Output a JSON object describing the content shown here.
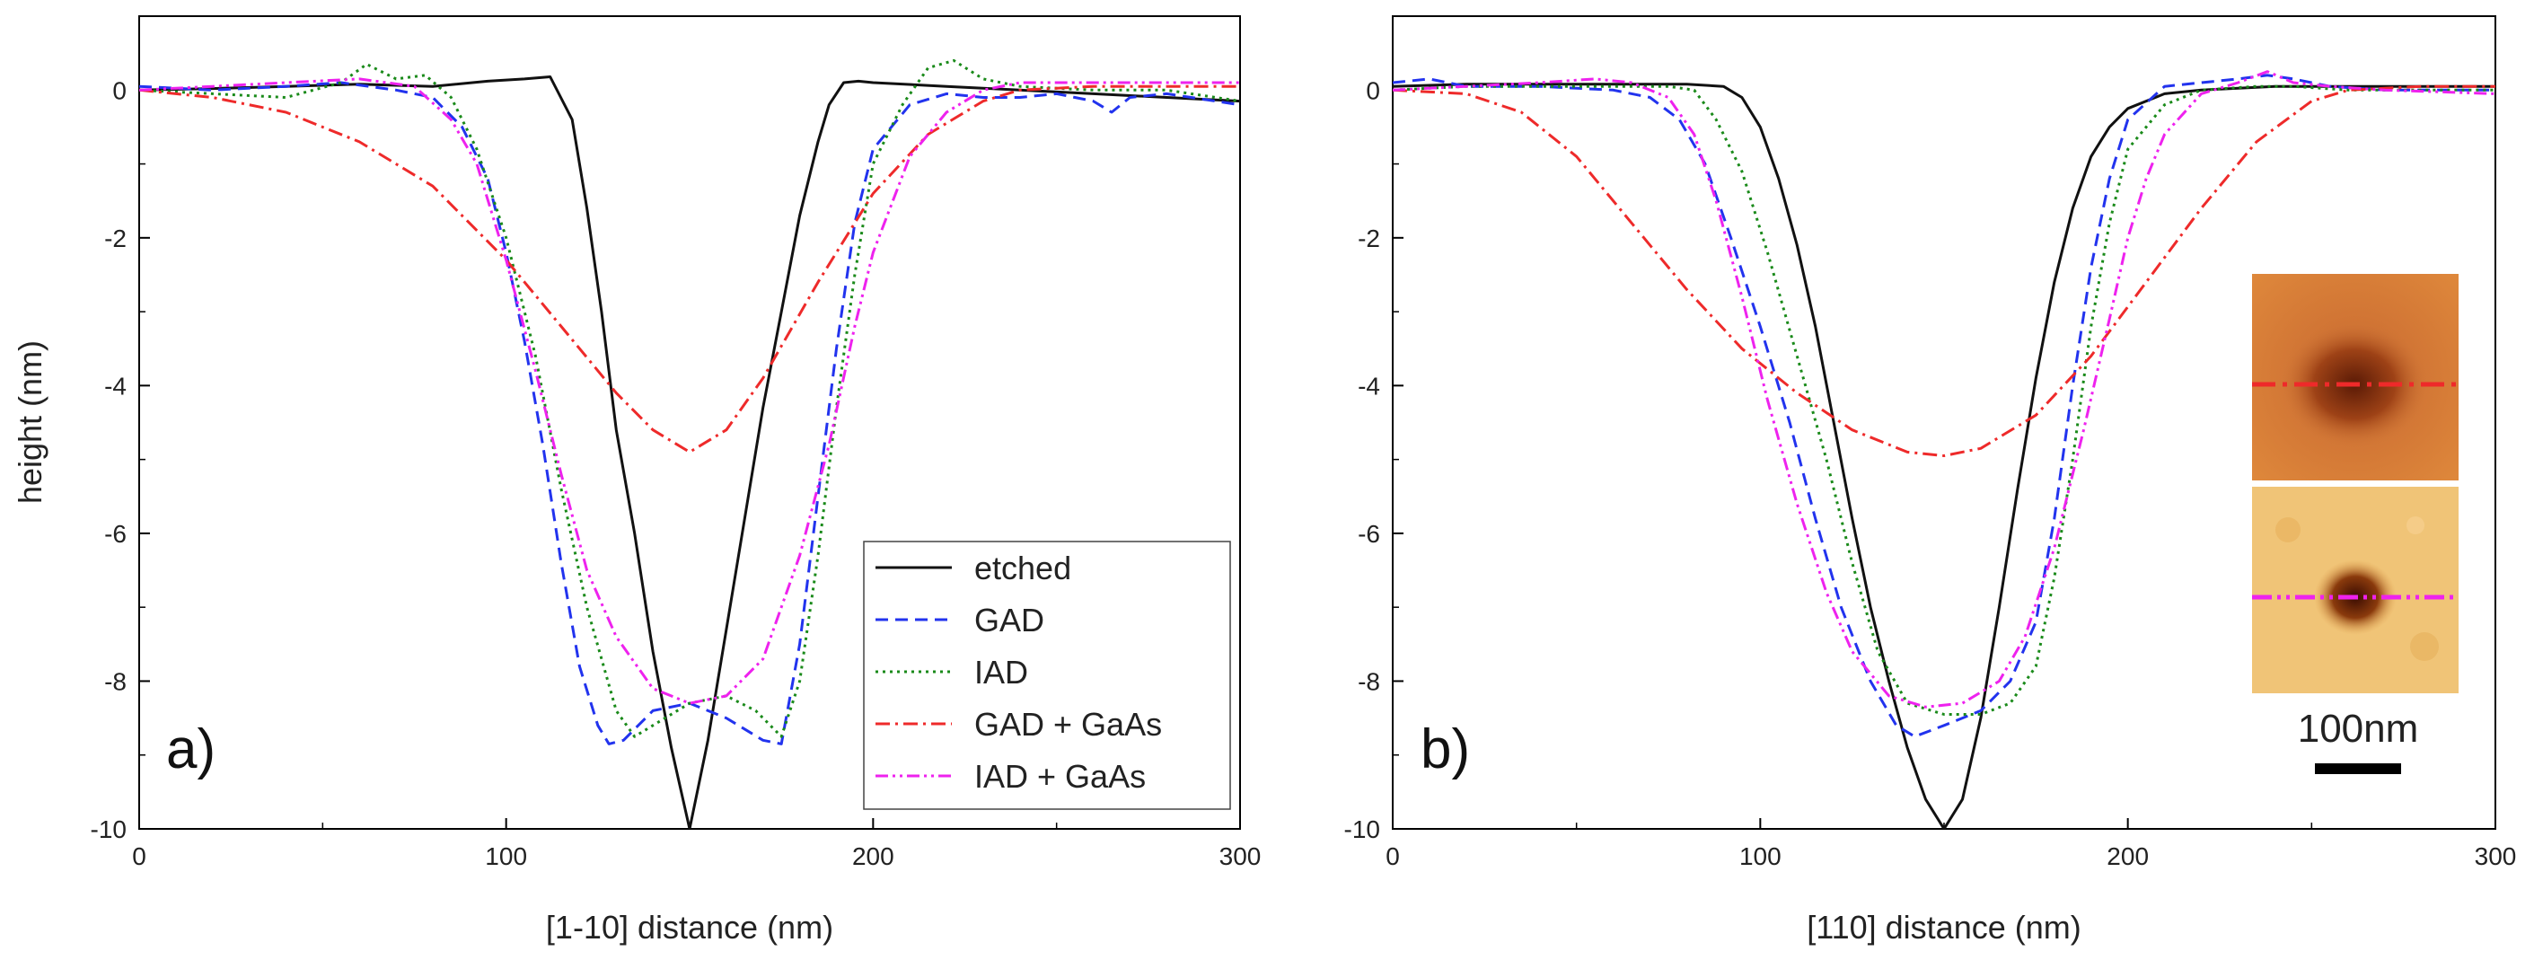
{
  "colors": {
    "etched": "#111111",
    "GAD": "#2233ee",
    "IAD": "#1a8a1a",
    "GAD_GaAs": "#ee2a2a",
    "IAD_GaAs": "#ee22ee"
  },
  "inset": {
    "scale_bar_label": "100nm",
    "top_image": "GAD + GaAs hole (AFM)",
    "bottom_image": "IAD + GaAs hole (AFM)"
  },
  "chart_data": [
    {
      "type": "line",
      "panel_label": "a)",
      "xlabel": "[1-10] distance (nm)",
      "ylabel": "height (nm)",
      "xlim": [
        0,
        300
      ],
      "ylim": [
        -10,
        1
      ],
      "xticks": [
        0,
        100,
        200,
        300
      ],
      "yticks": [
        0,
        -2,
        -4,
        -6,
        -8,
        -10
      ],
      "legend": [
        "etched",
        "GAD",
        "IAD",
        "GAD + GaAs",
        "IAD + GaAs"
      ],
      "legend_position": "bottom-right",
      "series": [
        {
          "name": "etched",
          "style": "solid",
          "x": [
            0,
            20,
            40,
            60,
            80,
            95,
            105,
            112,
            118,
            122,
            126,
            130,
            135,
            140,
            145,
            150,
            155,
            160,
            165,
            170,
            175,
            180,
            185,
            188,
            192,
            196,
            200,
            220,
            240,
            260,
            280,
            300
          ],
          "y": [
            0,
            0.02,
            0.05,
            0.08,
            0.05,
            0.12,
            0.15,
            0.18,
            -0.4,
            -1.6,
            -3.0,
            -4.6,
            -6.0,
            -7.6,
            -8.9,
            -10,
            -8.8,
            -7.3,
            -5.8,
            -4.3,
            -3.0,
            -1.7,
            -0.7,
            -0.2,
            0.1,
            0.12,
            0.1,
            0.05,
            0.0,
            -0.05,
            -0.1,
            -0.15
          ]
        },
        {
          "name": "GAD",
          "style": "dashed",
          "x": [
            0,
            20,
            40,
            55,
            70,
            80,
            88,
            95,
            100,
            105,
            110,
            115,
            120,
            125,
            128,
            132,
            140,
            150,
            160,
            170,
            175,
            180,
            185,
            190,
            195,
            200,
            210,
            220,
            230,
            240,
            250,
            260,
            265,
            270,
            280,
            300
          ],
          "y": [
            0.05,
            0,
            0.05,
            0.1,
            0,
            -0.1,
            -0.5,
            -1.2,
            -2.2,
            -3.4,
            -4.8,
            -6.4,
            -7.8,
            -8.6,
            -8.85,
            -8.8,
            -8.4,
            -8.3,
            -8.5,
            -8.8,
            -8.85,
            -7.5,
            -5.5,
            -3.5,
            -1.8,
            -0.8,
            -0.2,
            -0.05,
            -0.1,
            -0.1,
            -0.05,
            -0.15,
            -0.3,
            -0.1,
            -0.05,
            -0.2
          ]
        },
        {
          "name": "IAD",
          "style": "dotted",
          "x": [
            0,
            20,
            40,
            55,
            62,
            70,
            78,
            85,
            92,
            100,
            108,
            115,
            122,
            130,
            135,
            140,
            150,
            160,
            168,
            175,
            180,
            185,
            190,
            195,
            200,
            208,
            215,
            222,
            230,
            240,
            260,
            280,
            300
          ],
          "y": [
            0,
            -0.05,
            -0.1,
            0.1,
            0.35,
            0.15,
            0.2,
            -0.1,
            -0.8,
            -2.0,
            -3.6,
            -5.4,
            -7.0,
            -8.4,
            -8.75,
            -8.6,
            -8.3,
            -8.2,
            -8.4,
            -8.75,
            -8.0,
            -6.3,
            -4.3,
            -2.5,
            -1.0,
            -0.2,
            0.3,
            0.4,
            0.15,
            0.05,
            0.0,
            0.0,
            -0.15
          ]
        },
        {
          "name": "GAD + GaAs",
          "style": "dashdot",
          "x": [
            0,
            20,
            40,
            60,
            80,
            100,
            115,
            130,
            140,
            150,
            160,
            170,
            185,
            200,
            215,
            230,
            240,
            260,
            300
          ],
          "y": [
            0,
            -0.1,
            -0.3,
            -0.7,
            -1.3,
            -2.3,
            -3.2,
            -4.1,
            -4.6,
            -4.9,
            -4.6,
            -3.9,
            -2.6,
            -1.4,
            -0.6,
            -0.15,
            0.0,
            0.05,
            0.05
          ]
        },
        {
          "name": "IAD + GaAs",
          "style": "dashdotdot",
          "x": [
            0,
            20,
            40,
            60,
            75,
            85,
            92,
            100,
            108,
            115,
            122,
            130,
            140,
            150,
            160,
            170,
            180,
            188,
            195,
            200,
            210,
            220,
            230,
            240,
            260,
            300
          ],
          "y": [
            0,
            0.05,
            0.1,
            0.15,
            0.05,
            -0.4,
            -1.0,
            -2.3,
            -3.8,
            -5.2,
            -6.5,
            -7.4,
            -8.1,
            -8.3,
            -8.2,
            -7.7,
            -6.3,
            -4.8,
            -3.2,
            -2.2,
            -0.9,
            -0.3,
            0.0,
            0.1,
            0.1,
            0.1
          ]
        }
      ]
    },
    {
      "type": "line",
      "panel_label": "b)",
      "xlabel": "[110] distance (nm)",
      "ylabel": "height (nm)",
      "xlim": [
        0,
        300
      ],
      "ylim": [
        -10,
        1
      ],
      "xticks": [
        0,
        100,
        200,
        300
      ],
      "yticks": [
        0,
        -2,
        -4,
        -6,
        -8,
        -10
      ],
      "series": [
        {
          "name": "etched",
          "style": "solid",
          "x": [
            0,
            20,
            40,
            60,
            80,
            90,
            95,
            100,
            105,
            110,
            115,
            120,
            125,
            130,
            135,
            140,
            145,
            150,
            155,
            160,
            165,
            170,
            175,
            180,
            185,
            190,
            195,
            200,
            210,
            220,
            240,
            260,
            280,
            300
          ],
          "y": [
            0.05,
            0.08,
            0.08,
            0.08,
            0.08,
            0.05,
            -0.1,
            -0.5,
            -1.2,
            -2.1,
            -3.2,
            -4.5,
            -5.8,
            -7.0,
            -8.0,
            -8.9,
            -9.6,
            -10,
            -9.6,
            -8.5,
            -7.0,
            -5.4,
            -3.9,
            -2.6,
            -1.6,
            -0.9,
            -0.5,
            -0.25,
            -0.05,
            0.0,
            0.05,
            0.05,
            0.05,
            0.05
          ]
        },
        {
          "name": "GAD",
          "style": "dashed",
          "x": [
            0,
            10,
            20,
            40,
            60,
            70,
            78,
            85,
            92,
            100,
            108,
            115,
            122,
            130,
            137,
            142,
            150,
            160,
            168,
            175,
            180,
            185,
            190,
            195,
            200,
            210,
            220,
            230,
            238,
            245,
            255,
            270,
            300
          ],
          "y": [
            0.1,
            0.15,
            0.05,
            0.05,
            0.0,
            -0.1,
            -0.4,
            -1.0,
            -2.0,
            -3.2,
            -4.5,
            -5.8,
            -7.0,
            -8.0,
            -8.6,
            -8.75,
            -8.6,
            -8.4,
            -8.0,
            -7.2,
            -5.8,
            -4.0,
            -2.4,
            -1.2,
            -0.4,
            0.05,
            0.1,
            0.15,
            0.2,
            0.15,
            0.05,
            0.0,
            0.0
          ]
        },
        {
          "name": "IAD",
          "style": "dotted",
          "x": [
            0,
            20,
            40,
            60,
            75,
            82,
            88,
            95,
            102,
            110,
            118,
            125,
            132,
            140,
            150,
            160,
            168,
            175,
            180,
            185,
            190,
            195,
            200,
            210,
            220,
            235,
            245,
            260,
            300
          ],
          "y": [
            0,
            0.05,
            0.05,
            0.05,
            0.05,
            0.0,
            -0.4,
            -1.1,
            -2.2,
            -3.6,
            -5.0,
            -6.4,
            -7.6,
            -8.3,
            -8.45,
            -8.45,
            -8.3,
            -7.8,
            -6.6,
            -5.0,
            -3.2,
            -1.8,
            -0.8,
            -0.2,
            0.0,
            0.05,
            0.05,
            0.0,
            0.0
          ]
        },
        {
          "name": "GAD + GaAs",
          "style": "dashdot",
          "x": [
            0,
            20,
            35,
            50,
            65,
            80,
            95,
            110,
            125,
            140,
            150,
            160,
            175,
            190,
            205,
            220,
            235,
            250,
            260,
            280,
            300
          ],
          "y": [
            0,
            -0.05,
            -0.3,
            -0.9,
            -1.8,
            -2.7,
            -3.5,
            -4.1,
            -4.6,
            -4.9,
            -4.95,
            -4.85,
            -4.4,
            -3.6,
            -2.6,
            -1.6,
            -0.7,
            -0.15,
            0.0,
            0.05,
            0.05
          ]
        },
        {
          "name": "IAD + GaAs",
          "style": "dashdotdot",
          "x": [
            0,
            20,
            40,
            55,
            65,
            75,
            82,
            88,
            95,
            102,
            110,
            118,
            125,
            135,
            145,
            155,
            165,
            172,
            180,
            188,
            195,
            200,
            205,
            210,
            220,
            230,
            238,
            245,
            255,
            270,
            300
          ],
          "y": [
            0,
            0.05,
            0.1,
            0.15,
            0.1,
            -0.1,
            -0.6,
            -1.5,
            -2.8,
            -4.2,
            -5.6,
            -6.8,
            -7.6,
            -8.2,
            -8.35,
            -8.3,
            -8.0,
            -7.4,
            -6.2,
            -4.6,
            -3.1,
            -2.0,
            -1.2,
            -0.6,
            -0.05,
            0.1,
            0.25,
            0.1,
            0.05,
            0.0,
            -0.05
          ]
        }
      ]
    }
  ]
}
